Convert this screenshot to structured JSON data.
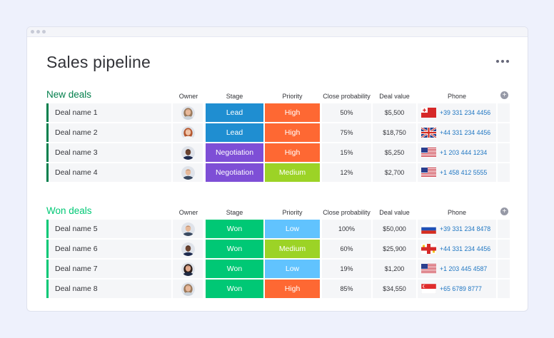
{
  "page": {
    "title": "Sales pipeline"
  },
  "columns": {
    "owner": "Owner",
    "stage": "Stage",
    "priority": "Priority",
    "probability": "Close probability",
    "value": "Deal value",
    "phone": "Phone"
  },
  "colors": {
    "lead": "#1f8ed1",
    "negotiation": "#7e4fd6",
    "won": "#00c875",
    "high": "#fe6833",
    "medium": "#9cd326",
    "low": "#61c3fe",
    "new_group": "#037f4c",
    "won_group": "#00c875"
  },
  "groups": [
    {
      "title": "New deals",
      "color": "#037f4c",
      "rows": [
        {
          "name": "Deal name 1",
          "avatar": "woman-avatar-1",
          "stage": "Lead",
          "stage_color": "#1f8ed1",
          "priority": "High",
          "priority_color": "#fe6833",
          "probability": "50%",
          "value": "$5,500",
          "flag": "tonga-flag-icon",
          "phone": "+39 331 234 4456"
        },
        {
          "name": "Deal name 2",
          "avatar": "woman-avatar-2",
          "stage": "Lead",
          "stage_color": "#1f8ed1",
          "priority": "High",
          "priority_color": "#fe6833",
          "probability": "75%",
          "value": "$18,750",
          "flag": "uk-flag-icon",
          "phone": "+44 331 234 4456"
        },
        {
          "name": "Deal name 3",
          "avatar": "man-avatar-1",
          "stage": "Negotiation",
          "stage_color": "#7e4fd6",
          "priority": "High",
          "priority_color": "#fe6833",
          "probability": "15%",
          "value": "$5,250",
          "flag": "us-flag-icon",
          "phone": "+1 203 444 1234"
        },
        {
          "name": "Deal name 4",
          "avatar": "man-avatar-2",
          "stage": "Negotiation",
          "stage_color": "#7e4fd6",
          "priority": "Medium",
          "priority_color": "#9cd326",
          "probability": "12%",
          "value": "$2,700",
          "flag": "us-flag-icon",
          "phone": "+1 458 412 5555"
        }
      ]
    },
    {
      "title": "Won deals",
      "color": "#00c875",
      "rows": [
        {
          "name": "Deal name 5",
          "avatar": "man-avatar-2",
          "stage": "Won",
          "stage_color": "#00c875",
          "priority": "Low",
          "priority_color": "#61c3fe",
          "probability": "100%",
          "value": "$50,000",
          "flag": "russia-flag-icon",
          "phone": "+39 331 234 8478"
        },
        {
          "name": "Deal name 6",
          "avatar": "man-avatar-1",
          "stage": "Won",
          "stage_color": "#00c875",
          "priority": "Medium",
          "priority_color": "#9cd326",
          "probability": "60%",
          "value": "$25,900",
          "flag": "cross-flag-icon",
          "phone": "+44 331 234 4456"
        },
        {
          "name": "Deal name 7",
          "avatar": "woman-avatar-3",
          "stage": "Won",
          "stage_color": "#00c875",
          "priority": "Low",
          "priority_color": "#61c3fe",
          "probability": "19%",
          "value": "$1,200",
          "flag": "us-flag-icon",
          "phone": "+1 203 445 4587"
        },
        {
          "name": "Deal name 8",
          "avatar": "woman-avatar-1",
          "stage": "Won",
          "stage_color": "#00c875",
          "priority": "High",
          "priority_color": "#fe6833",
          "probability": "85%",
          "value": "$34,550",
          "flag": "singapore-flag-icon",
          "phone": "+65 6789 8777"
        }
      ]
    }
  ]
}
